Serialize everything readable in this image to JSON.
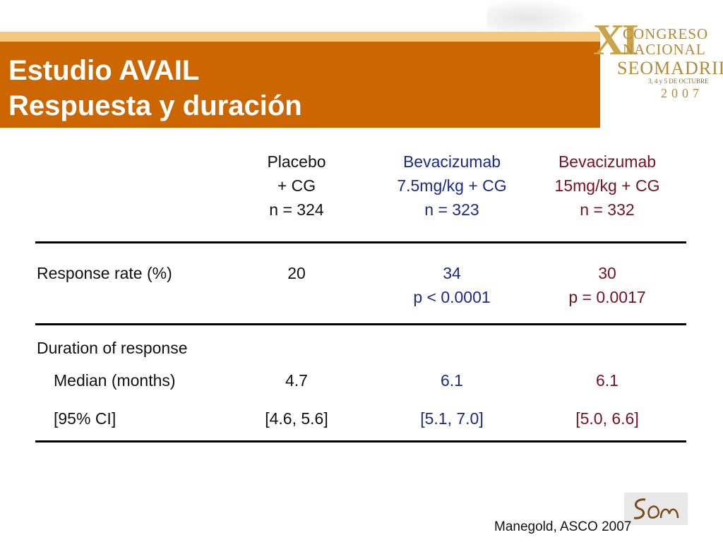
{
  "slide": {
    "title_line1": "Estudio AVAIL",
    "title_line2": "Respuesta y duración"
  },
  "logo": {
    "roman": "XI",
    "line1": "CONGRESO",
    "line2": "NACIONAL",
    "line3": "SEOMADRID",
    "dates": "3, 4 y 5 DE OCTUBRE",
    "year": "2007"
  },
  "table": {
    "columns": [
      {
        "line1": "Placebo",
        "line2": "+ CG",
        "line3": "n = 324"
      },
      {
        "line1": "Bevacizumab",
        "line2": "7.5mg/kg + CG",
        "line3": "n = 323"
      },
      {
        "line1": "Bevacizumab",
        "line2": "15mg/kg + CG",
        "line3": "n = 332"
      }
    ],
    "response_rate": {
      "label": "Response rate (%)",
      "values": [
        "20",
        "34",
        "30"
      ],
      "p_values": [
        "",
        "p < 0.0001",
        "p = 0.0017"
      ]
    },
    "duration": {
      "label": "Duration of response",
      "median": {
        "label": "Median (months)",
        "values": [
          "4.7",
          "6.1",
          "6.1"
        ]
      },
      "ci": {
        "label": "[95% CI]",
        "values": [
          "[4.6, 5.6]",
          "[5.1, 7.0]",
          "[5.0, 6.6]"
        ]
      }
    }
  },
  "footer": {
    "citation": "Manegold, ASCO 2007"
  },
  "colors": {
    "title_bar": "#cc6600",
    "column_bev_7_5": "#1a2a8a",
    "column_bev_15": "#7a1020"
  }
}
